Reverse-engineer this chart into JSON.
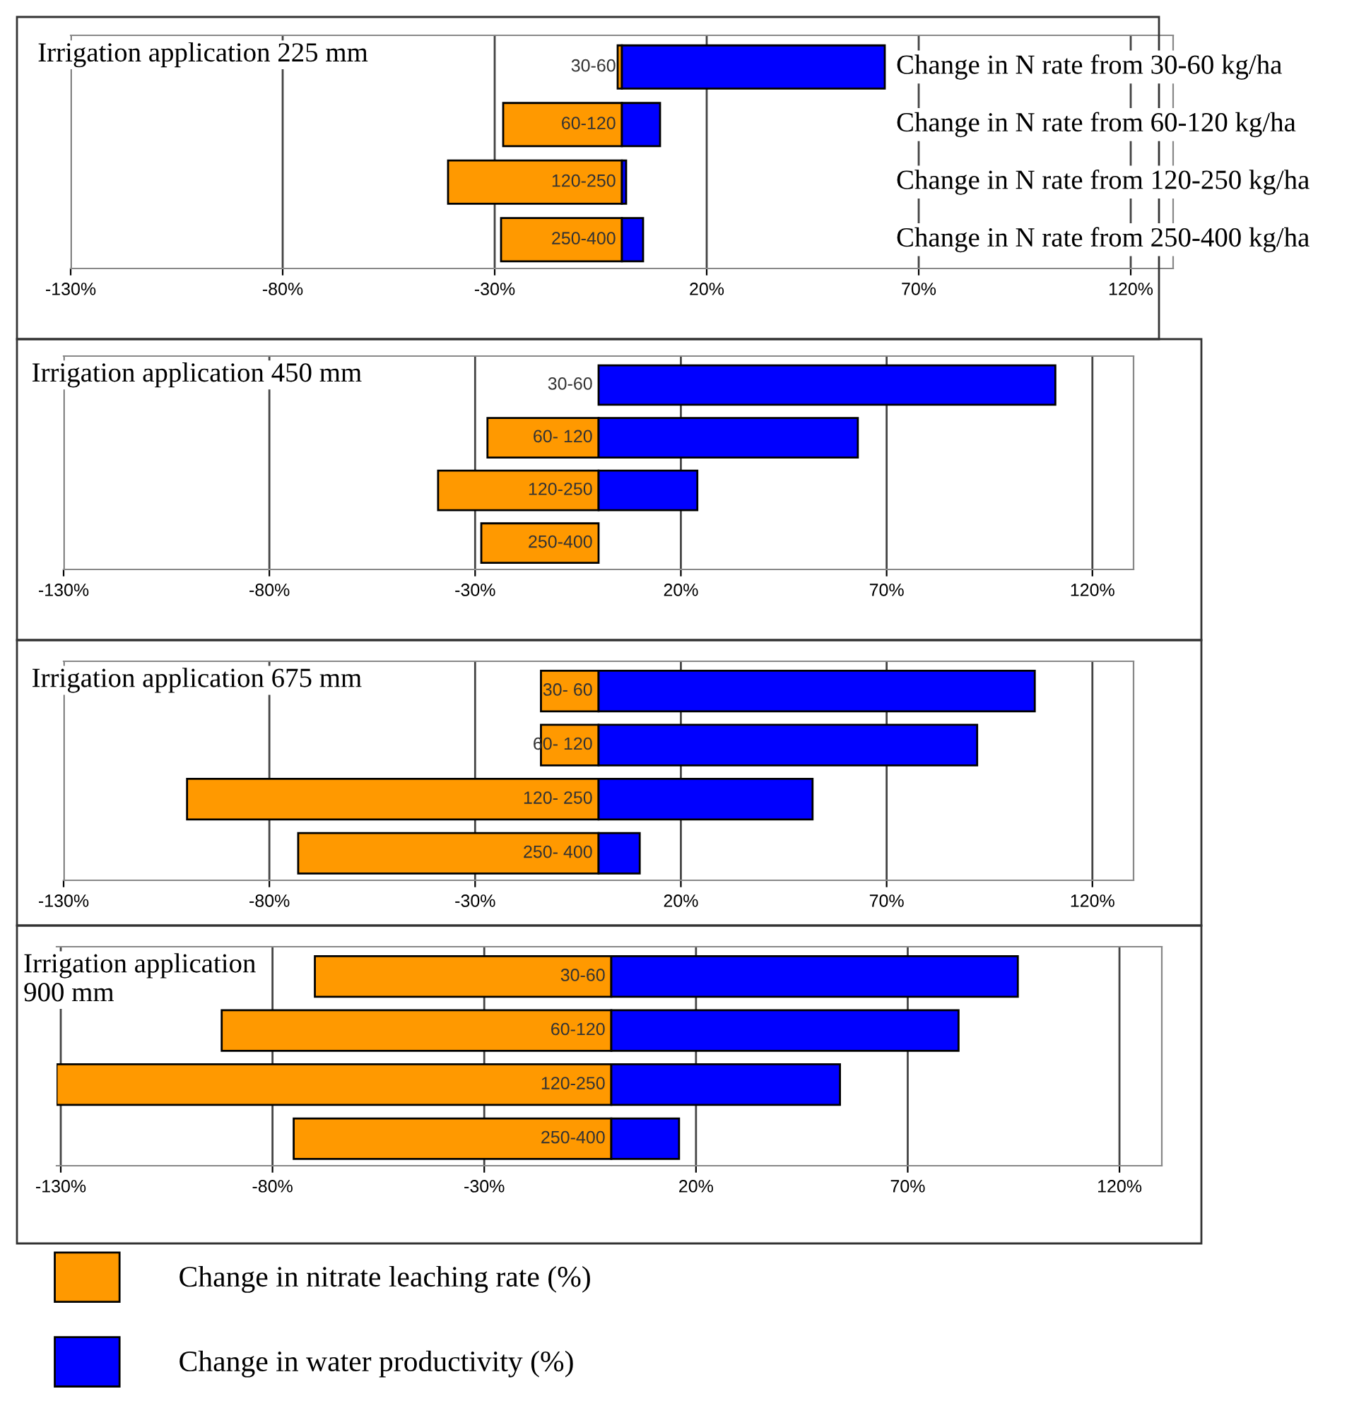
{
  "chart_data": [
    {
      "type": "bar",
      "orientation": "horizontal",
      "title": "Irrigation application 225 mm",
      "categories": [
        "30-60",
        "60-120",
        "120-250",
        "250-400"
      ],
      "series": [
        {
          "color": "#ff9900",
          "values": [
            -1,
            -28,
            -41,
            -28.5
          ]
        },
        {
          "color": "#0000ff",
          "values": [
            62,
            9,
            1,
            5
          ]
        }
      ],
      "xlim": [
        -130,
        130
      ],
      "xticks": [
        {
          "value": -130,
          "label": "-130%"
        },
        {
          "value": -80,
          "label": "-80%"
        },
        {
          "value": -30,
          "label": "-30%"
        },
        {
          "value": 20,
          "label": "20%"
        },
        {
          "value": 70,
          "label": "70%"
        },
        {
          "value": 120,
          "label": "120%"
        }
      ],
      "grid": "x",
      "stacked": true,
      "annotations": [
        "Change in N rate from 30-60 kg/ha",
        "Change in N rate from 60-120 kg/ha",
        "Change in N rate from 120-250 kg/ha",
        "Change in N rate from 250-400 kg/ha"
      ]
    },
    {
      "type": "bar",
      "orientation": "horizontal",
      "title": "Irrigation application 450 mm",
      "categories": [
        "30-60",
        "60- 120",
        "120-250",
        "250-400"
      ],
      "series": [
        {
          "color": "#ff9900",
          "values": [
            null,
            -27,
            -39,
            -28.5
          ]
        },
        {
          "color": "#0000ff",
          "values": [
            111,
            63,
            24,
            null
          ]
        }
      ],
      "xlim": [
        -130,
        130
      ],
      "xticks": [
        {
          "value": -130,
          "label": "-130%"
        },
        {
          "value": -80,
          "label": "-80%"
        },
        {
          "value": -30,
          "label": "-30%"
        },
        {
          "value": 20,
          "label": "20%"
        },
        {
          "value": 70,
          "label": "70%"
        },
        {
          "value": 120,
          "label": "120%"
        }
      ],
      "grid": "x",
      "stacked": true
    },
    {
      "type": "bar",
      "orientation": "horizontal",
      "title": "Irrigation application 675 mm",
      "categories": [
        "30- 60",
        "60- 120",
        "120- 250",
        "250- 400"
      ],
      "series": [
        {
          "color": "#ff9900",
          "values": [
            -14,
            -14,
            -100,
            -73
          ]
        },
        {
          "color": "#0000ff",
          "values": [
            106,
            92,
            52,
            10
          ]
        }
      ],
      "xlim": [
        -130,
        130
      ],
      "xticks": [
        {
          "value": -130,
          "label": "-130%"
        },
        {
          "value": -80,
          "label": "-80%"
        },
        {
          "value": -30,
          "label": "-30%"
        },
        {
          "value": 20,
          "label": "20%"
        },
        {
          "value": 70,
          "label": "70%"
        },
        {
          "value": 120,
          "label": "120%"
        }
      ],
      "grid": "x",
      "stacked": true
    },
    {
      "type": "bar",
      "orientation": "horizontal",
      "title": "Irrigation application\n900 mm",
      "categories": [
        "30-60",
        "60-120",
        "120-250",
        "250-400"
      ],
      "series": [
        {
          "name": "Change in nitrate leaching rate (%)",
          "color": "#ff9900",
          "values": [
            -70,
            -92,
            -131,
            -75
          ]
        },
        {
          "name": "Change in water productivity (%)",
          "color": "#0000ff",
          "values": [
            96,
            82,
            54,
            16
          ]
        }
      ],
      "xlim": [
        -131,
        130
      ],
      "xticks": [
        {
          "value": -130,
          "label": "-130%"
        },
        {
          "value": -80,
          "label": "-80%"
        },
        {
          "value": -30,
          "label": "-30%"
        },
        {
          "value": 20,
          "label": "20%"
        },
        {
          "value": 70,
          "label": "70%"
        },
        {
          "value": 120,
          "label": "120%"
        }
      ],
      "grid": "x",
      "stacked": true,
      "legend": "bottom"
    }
  ]
}
